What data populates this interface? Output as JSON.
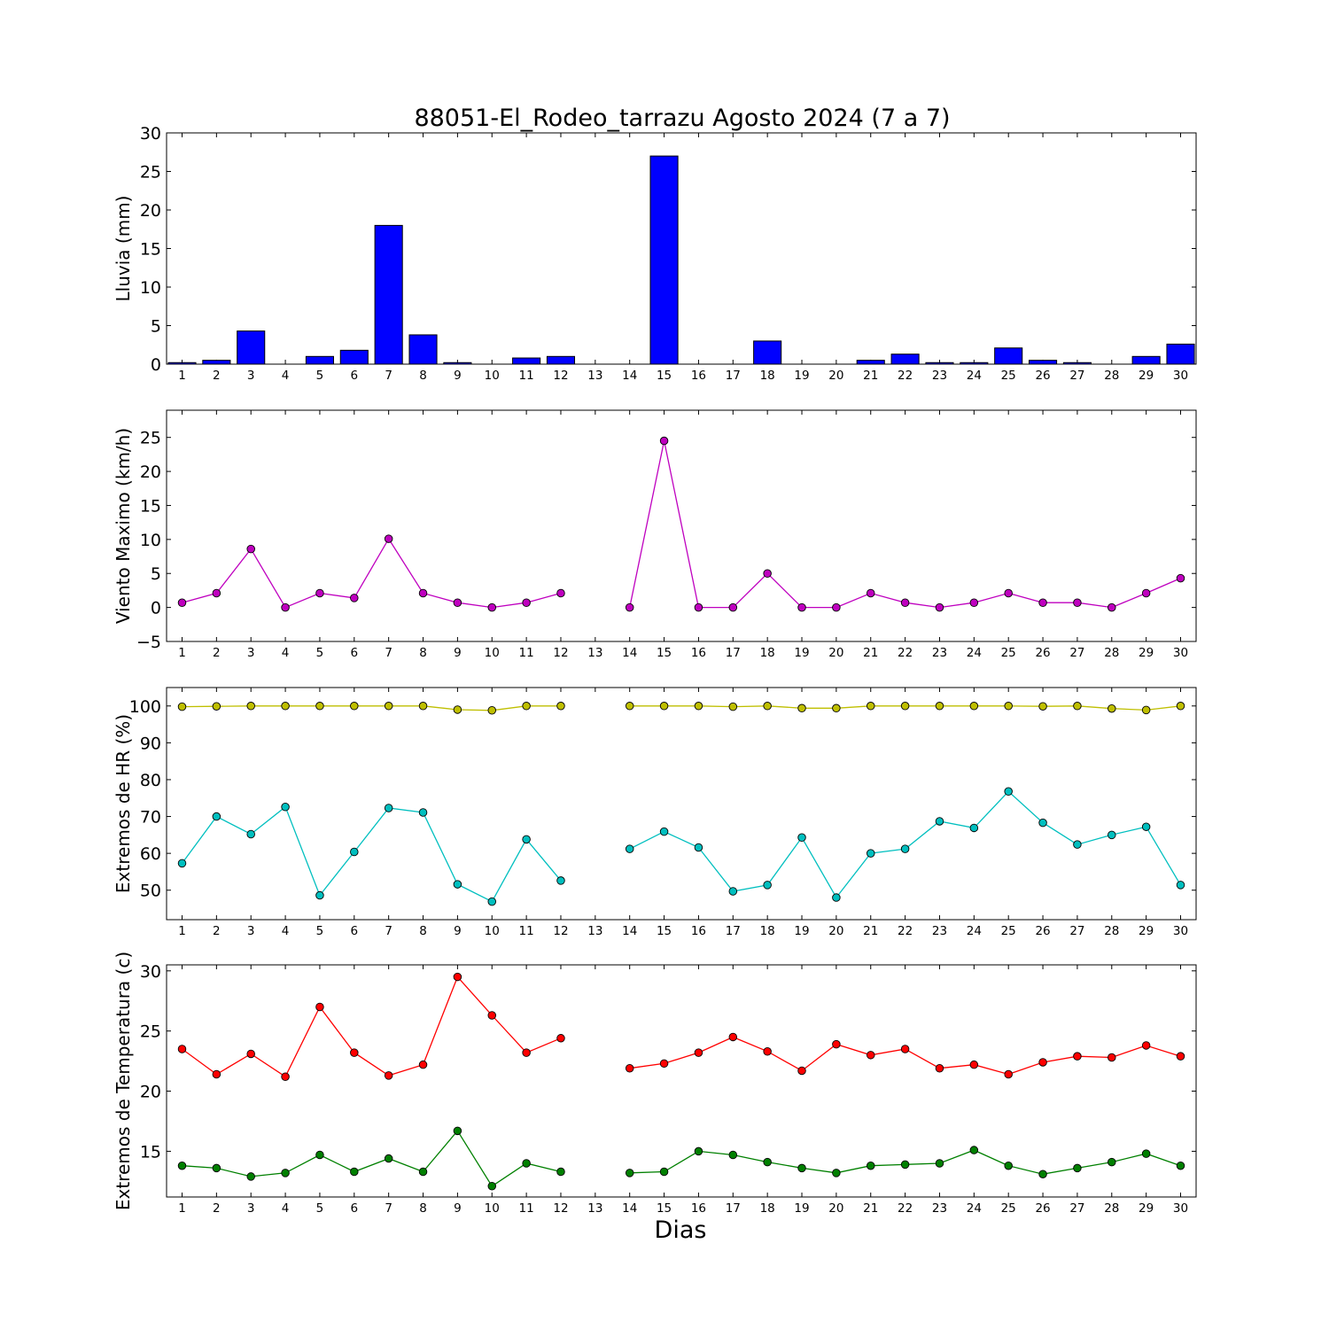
{
  "figure": {
    "title": "88051-El_Rodeo_tarrazu Agosto 2024  (7 a 7)",
    "xlabel": "Dias"
  },
  "chart_data": [
    {
      "type": "bar",
      "ylabel": "Lluvia (mm)",
      "ylim": [
        0,
        30
      ],
      "yticks": [
        0,
        5,
        10,
        15,
        20,
        25,
        30
      ],
      "x": [
        1,
        2,
        3,
        4,
        5,
        6,
        7,
        8,
        9,
        10,
        11,
        12,
        13,
        14,
        15,
        16,
        17,
        18,
        19,
        20,
        21,
        22,
        23,
        24,
        25,
        26,
        27,
        28,
        29,
        30
      ],
      "series": [
        {
          "color": "#0000ff",
          "values": [
            0.2,
            0.5,
            4.3,
            0,
            1.0,
            1.8,
            18.0,
            3.8,
            0.2,
            0,
            0.8,
            1.0,
            0,
            0,
            27.0,
            0,
            0,
            3.0,
            0,
            0,
            0.5,
            1.3,
            0.2,
            0.2,
            2.1,
            0.5,
            0.2,
            0,
            1.0,
            2.6
          ]
        }
      ],
      "xticks": [
        "1",
        "2",
        "3",
        "4",
        "5",
        "6",
        "7",
        "8",
        "9",
        "10",
        "11",
        "12",
        "13",
        "14",
        "15",
        "16",
        "17",
        "18",
        "19",
        "20",
        "21",
        "22",
        "23",
        "24",
        "25",
        "26",
        "27",
        "28",
        "29",
        "30"
      ]
    },
    {
      "type": "line",
      "ylabel": "Viento Maximo (km/h)",
      "ylim": [
        -5,
        29
      ],
      "yticks": [
        -5,
        0,
        5,
        10,
        15,
        20,
        25
      ],
      "x": [
        1,
        2,
        3,
        4,
        5,
        6,
        7,
        8,
        9,
        10,
        11,
        12,
        13,
        14,
        15,
        16,
        17,
        18,
        19,
        20,
        21,
        22,
        23,
        24,
        25,
        26,
        27,
        28,
        29,
        30
      ],
      "series": [
        {
          "color": "#bf00bf",
          "values": [
            0.7,
            2.1,
            8.6,
            0,
            2.1,
            1.4,
            10.1,
            2.1,
            0.7,
            0,
            0.7,
            2.1,
            null,
            0,
            24.5,
            0,
            0,
            5.0,
            0,
            0,
            2.1,
            0.7,
            0,
            0.7,
            2.1,
            0.7,
            0.7,
            0,
            2.1,
            4.3
          ]
        }
      ],
      "xticks": [
        "1",
        "2",
        "3",
        "4",
        "5",
        "6",
        "7",
        "8",
        "9",
        "10",
        "11",
        "12",
        "13",
        "14",
        "15",
        "16",
        "17",
        "18",
        "19",
        "20",
        "21",
        "22",
        "23",
        "24",
        "25",
        "26",
        "27",
        "28",
        "29",
        "30"
      ]
    },
    {
      "type": "line",
      "ylabel": "Extremos de HR (%)",
      "ylim": [
        42,
        105
      ],
      "yticks": [
        50,
        60,
        70,
        80,
        90,
        100
      ],
      "x": [
        1,
        2,
        3,
        4,
        5,
        6,
        7,
        8,
        9,
        10,
        11,
        12,
        13,
        14,
        15,
        16,
        17,
        18,
        19,
        20,
        21,
        22,
        23,
        24,
        25,
        26,
        27,
        28,
        29,
        30
      ],
      "series": [
        {
          "color": "#bfbf00",
          "values": [
            99.8,
            99.9,
            100,
            100,
            100,
            100,
            100,
            100,
            99.0,
            98.8,
            100,
            100,
            null,
            100,
            100,
            100,
            99.8,
            100,
            99.4,
            99.4,
            100,
            100,
            100,
            100,
            100,
            99.9,
            100,
            99.3,
            98.9,
            100
          ]
        },
        {
          "color": "#00bfbf",
          "values": [
            57.3,
            70.0,
            65.2,
            72.6,
            48.6,
            60.4,
            72.3,
            71.1,
            51.6,
            46.9,
            63.8,
            52.6,
            null,
            61.2,
            65.9,
            61.6,
            49.7,
            51.4,
            64.3,
            48.0,
            60.0,
            61.2,
            68.7,
            66.9,
            76.8,
            68.3,
            62.4,
            65.0,
            67.2,
            51.4
          ]
        }
      ],
      "xticks": [
        "1",
        "2",
        "3",
        "4",
        "5",
        "6",
        "7",
        "8",
        "9",
        "10",
        "11",
        "12",
        "13",
        "14",
        "15",
        "16",
        "17",
        "18",
        "19",
        "20",
        "21",
        "22",
        "23",
        "24",
        "25",
        "26",
        "27",
        "28",
        "29",
        "30"
      ]
    },
    {
      "type": "line",
      "ylabel": "Extremos de Temperatura (c)",
      "ylim": [
        11.2,
        30.5
      ],
      "yticks": [
        15,
        20,
        25,
        30
      ],
      "x": [
        1,
        2,
        3,
        4,
        5,
        6,
        7,
        8,
        9,
        10,
        11,
        12,
        13,
        14,
        15,
        16,
        17,
        18,
        19,
        20,
        21,
        22,
        23,
        24,
        25,
        26,
        27,
        28,
        29,
        30
      ],
      "series": [
        {
          "color": "#ff0000",
          "values": [
            23.5,
            21.4,
            23.1,
            21.2,
            27.0,
            23.2,
            21.3,
            22.2,
            29.5,
            26.3,
            23.2,
            24.4,
            null,
            21.9,
            22.3,
            23.2,
            24.5,
            23.3,
            21.7,
            23.9,
            23.0,
            23.5,
            21.9,
            22.2,
            21.4,
            22.4,
            22.9,
            22.8,
            23.8,
            22.9
          ]
        },
        {
          "color": "#008000",
          "values": [
            13.8,
            13.6,
            12.9,
            13.2,
            14.7,
            13.3,
            14.4,
            13.3,
            16.7,
            12.1,
            14.0,
            13.3,
            null,
            13.2,
            13.3,
            15.0,
            14.7,
            14.1,
            13.6,
            13.2,
            13.8,
            13.9,
            14.0,
            15.1,
            13.8,
            13.1,
            13.6,
            14.1,
            14.8,
            13.8
          ]
        }
      ],
      "xticks": [
        "1",
        "2",
        "3",
        "4",
        "5",
        "6",
        "7",
        "8",
        "9",
        "10",
        "11",
        "12",
        "13",
        "14",
        "15",
        "16",
        "17",
        "18",
        "19",
        "20",
        "21",
        "22",
        "23",
        "24",
        "25",
        "26",
        "27",
        "28",
        "29",
        "30"
      ]
    }
  ]
}
